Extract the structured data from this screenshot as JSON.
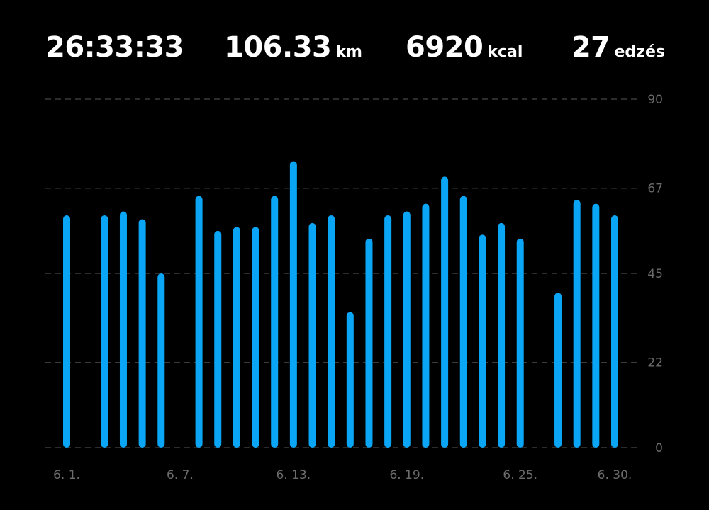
{
  "summary": {
    "duration": "26:33:33",
    "distance_value": "106.33",
    "distance_unit": "km",
    "calories_value": "6920",
    "calories_unit": "kcal",
    "workouts_value": "27",
    "workouts_unit": "edzés"
  },
  "colors": {
    "bar": "#0aa6f5",
    "grid": "#3a3a3a",
    "label": "#6b6b6b",
    "background": "#000000"
  },
  "chart_data": {
    "type": "bar",
    "x": [
      1,
      2,
      3,
      4,
      5,
      6,
      7,
      8,
      9,
      10,
      11,
      12,
      13,
      14,
      15,
      16,
      17,
      18,
      19,
      20,
      21,
      22,
      23,
      24,
      25,
      26,
      27,
      28,
      29,
      30
    ],
    "values": [
      60,
      null,
      60,
      61,
      59,
      45,
      null,
      65,
      56,
      57,
      57,
      65,
      74,
      58,
      60,
      35,
      54,
      60,
      61,
      63,
      70,
      65,
      55,
      58,
      54,
      null,
      40,
      64,
      63,
      60
    ],
    "x_tick_labels": [
      {
        "x": 1,
        "label": "6. 1."
      },
      {
        "x": 7,
        "label": "6. 7."
      },
      {
        "x": 13,
        "label": "6. 13."
      },
      {
        "x": 19,
        "label": "6. 19."
      },
      {
        "x": 25,
        "label": "6. 25."
      },
      {
        "x": 30,
        "label": "6. 30."
      }
    ],
    "y_ticks": [
      0,
      22,
      45,
      67,
      90
    ],
    "ylim": [
      0,
      90
    ],
    "grid": true,
    "y_axis_position": "right"
  }
}
